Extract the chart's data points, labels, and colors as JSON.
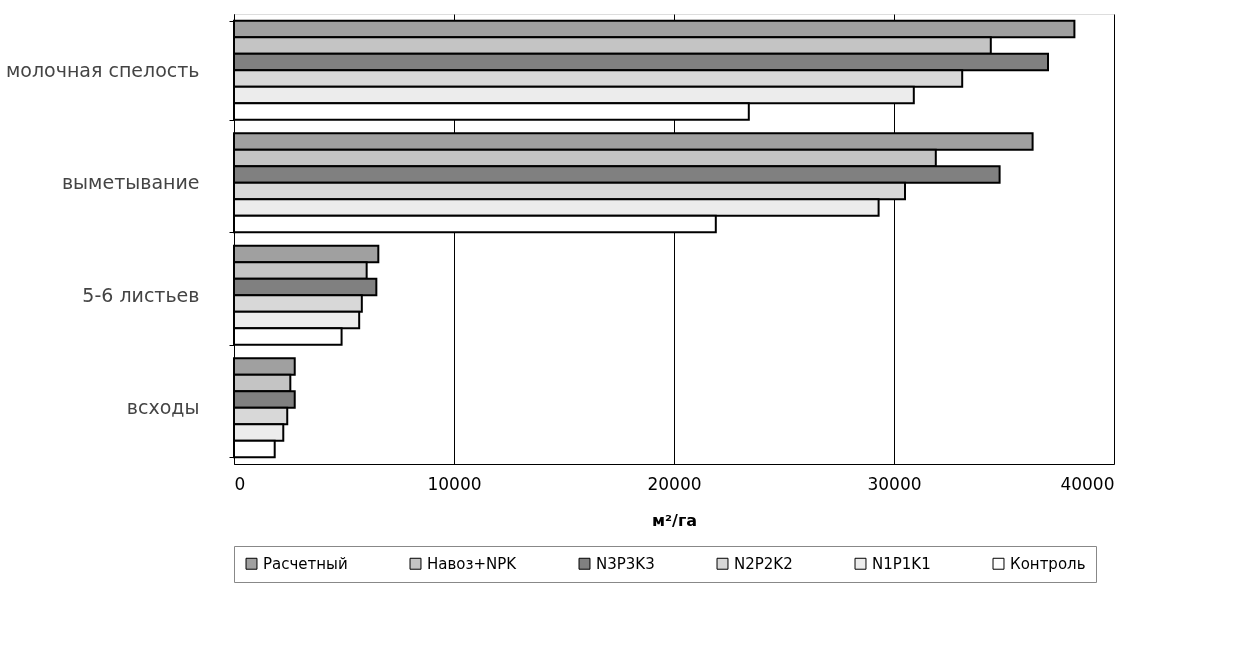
{
  "chart_data": {
    "type": "bar",
    "orientation": "horizontal",
    "xlabel": "м²/га",
    "categories": [
      "молочная спелость",
      "выметывание",
      "5-6 листьев",
      "всходы"
    ],
    "series": [
      {
        "name": "Расчетный",
        "color": "#a0a0a0",
        "values": [
          38200,
          36300,
          6560,
          2760
        ]
      },
      {
        "name": "Навоз+NPK",
        "color": "#c4c4c4",
        "values": [
          34400,
          31900,
          6030,
          2560
        ]
      },
      {
        "name": "N3P3K3",
        "color": "#808080",
        "values": [
          37000,
          34800,
          6470,
          2760
        ]
      },
      {
        "name": "N2P2K2",
        "color": "#d8d8d8",
        "values": [
          33100,
          30500,
          5810,
          2420
        ]
      },
      {
        "name": "N1P1K1",
        "color": "#ececec",
        "values": [
          30900,
          29300,
          5690,
          2240
        ]
      },
      {
        "name": "Контроль",
        "color": "#ffffff",
        "values": [
          23400,
          21900,
          4890,
          1850
        ]
      }
    ],
    "xlim": [
      0,
      40000
    ],
    "xticks": [
      0,
      10000,
      20000,
      30000,
      40000
    ],
    "grid": "x",
    "legend": "bottom"
  }
}
